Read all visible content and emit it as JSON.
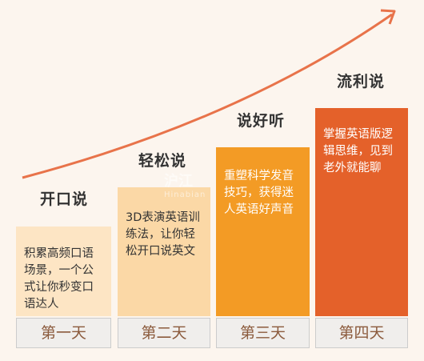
{
  "colors": {
    "background": "#fcf5ee",
    "arrow": "#e8734a",
    "step1": "#fde5c4",
    "step2": "#fbd8a6",
    "step3": "#f39b25",
    "step4": "#e4612a",
    "text_dark": "#333333",
    "day_text": "#8b5a3c"
  },
  "steps": [
    {
      "title": "开口说",
      "body": "积累高频口语场景，一个公式让你秒变口语达人",
      "day": "第一天"
    },
    {
      "title": "轻松说",
      "body": "3D表演英语训练法，让你轻松开口说英文",
      "day": "第二天"
    },
    {
      "title": "说好听",
      "body": "重塑科学发音技巧，获得迷人英语好声音",
      "day": "第三天"
    },
    {
      "title": "流利说",
      "body": "掌握英语版逻辑思维，见到老外就能聊",
      "day": "第四天"
    }
  ],
  "watermark": {
    "text": "沪江",
    "sub": "Hinabian"
  }
}
